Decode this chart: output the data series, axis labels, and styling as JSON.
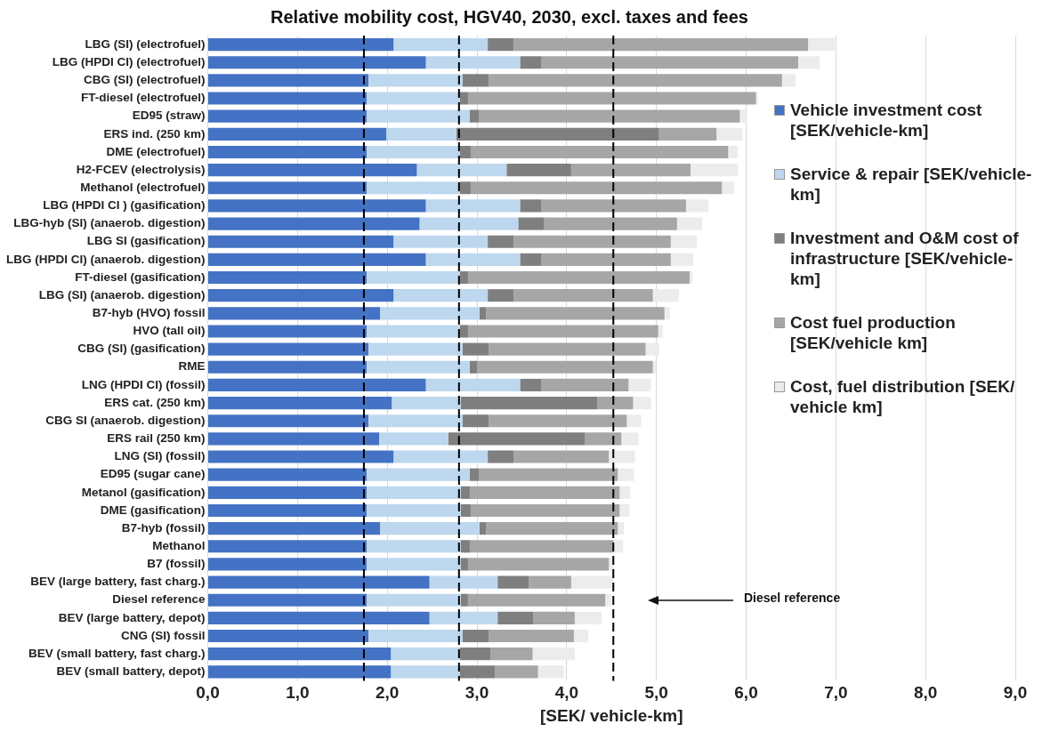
{
  "chart_data": {
    "type": "bar",
    "orientation": "horizontal",
    "stacked": true,
    "title": "Relative mobility cost, HGV40, 2030, excl. taxes and fees",
    "xlabel": "[SEK/ vehicle-km]",
    "categories": [
      "LBG (SI) (electrofuel)",
      "LBG (HPDI CI) (electrofuel)",
      "CBG (SI) (electrofuel)",
      "FT-diesel (electrofuel)",
      "ED95 (straw)",
      "ERS ind. (250 km)",
      "DME (electrofuel)",
      "H2-FCEV (electrolysis)",
      "Methanol (electrofuel)",
      "LBG (HPDI CI ) (gasification)",
      "LBG-hyb (SI) (anaerob. digestion)",
      "LBG SI (gasification)",
      "LBG (HPDI CI) (anaerob. digestion)",
      "FT-diesel (gasification)",
      "LBG (SI) (anaerob. digestion)",
      "B7-hyb (HVO) fossil",
      "HVO (tall oil)",
      "CBG (SI) (gasification)",
      "RME",
      "LNG (HPDI CI) (fossil)",
      "ERS cat. (250 km)",
      "CBG SI (anaerob. digestion)",
      "ERS rail (250 km)",
      "LNG (SI) (fossil)",
      "ED95 (sugar cane)",
      "Metanol (gasification)",
      "DME (gasification)",
      "B7-hyb (fossil)",
      "Methanol",
      "B7 (fossil)",
      "BEV (large battery, fast charg.)",
      "Diesel reference",
      "BEV (large battery, depot)",
      "CNG (SI) fossil",
      "BEV (small battery, fast charg.)",
      "BEV (small battery, depot)"
    ],
    "series": [
      {
        "name": "Vehicle investment cost [SEK/vehicle-km]",
        "color": "#4472c4",
        "values": [
          2.07,
          2.43,
          1.79,
          1.77,
          1.77,
          1.99,
          1.77,
          2.33,
          1.77,
          2.43,
          2.36,
          2.07,
          2.43,
          1.77,
          2.07,
          1.92,
          1.77,
          1.79,
          1.77,
          2.43,
          2.05,
          1.79,
          1.91,
          2.07,
          1.77,
          1.77,
          1.77,
          1.92,
          1.77,
          1.77,
          2.47,
          1.77,
          2.47,
          1.79,
          2.04,
          2.04
        ]
      },
      {
        "name": "Service & repair [SEK/vehicle-km]",
        "color": "#bdd7ee",
        "values": [
          1.05,
          1.05,
          1.05,
          1.04,
          1.15,
          0.78,
          1.04,
          1.0,
          1.04,
          1.05,
          1.1,
          1.05,
          1.05,
          1.04,
          1.05,
          1.11,
          1.04,
          1.05,
          1.15,
          1.05,
          0.77,
          1.05,
          0.77,
          1.05,
          1.15,
          1.05,
          1.05,
          1.11,
          1.05,
          1.05,
          0.76,
          1.05,
          0.76,
          1.05,
          0.77,
          0.77
        ]
      },
      {
        "name": "Investment and O&M cost of infrastructure [SEK/vehicle-km]",
        "color": "#7f7f7f",
        "values": [
          0.29,
          0.24,
          0.29,
          0.09,
          0.1,
          2.26,
          0.12,
          0.72,
          0.12,
          0.24,
          0.29,
          0.29,
          0.24,
          0.09,
          0.29,
          0.07,
          0.09,
          0.29,
          0.08,
          0.24,
          1.52,
          0.29,
          1.52,
          0.29,
          0.1,
          0.1,
          0.11,
          0.07,
          0.1,
          0.08,
          0.35,
          0.08,
          0.4,
          0.29,
          0.34,
          0.39
        ]
      },
      {
        "name": "Cost fuel production [SEK/vehicle km]",
        "color": "#a6a6a6",
        "values": [
          3.28,
          2.86,
          3.27,
          3.21,
          2.91,
          0.64,
          2.87,
          1.33,
          2.8,
          1.61,
          1.48,
          1.75,
          1.44,
          2.47,
          1.55,
          1.99,
          2.12,
          1.75,
          1.96,
          0.97,
          0.4,
          1.54,
          0.41,
          1.06,
          1.55,
          1.67,
          1.66,
          1.47,
          1.6,
          1.57,
          0.47,
          1.53,
          0.46,
          0.95,
          0.47,
          0.48
        ]
      },
      {
        "name": "Cost, fuel distribution [SEK/ vehicle km]",
        "color": "#ececec",
        "values": [
          0.3,
          0.24,
          0.15,
          0.02,
          0.08,
          0.29,
          0.11,
          0.53,
          0.14,
          0.25,
          0.28,
          0.29,
          0.25,
          0.03,
          0.29,
          0.06,
          0.05,
          0.15,
          0.03,
          0.25,
          0.2,
          0.16,
          0.19,
          0.29,
          0.18,
          0.12,
          0.11,
          0.07,
          0.11,
          0.05,
          0.47,
          0.07,
          0.3,
          0.16,
          0.47,
          0.29
        ]
      }
    ],
    "xlim": [
      0,
      9
    ],
    "xticks": [
      {
        "value": 0,
        "label": "0,0"
      },
      {
        "value": 1,
        "label": "1,0"
      },
      {
        "value": 2,
        "label": "2,0"
      },
      {
        "value": 3,
        "label": "3,0"
      },
      {
        "value": 4,
        "label": "4,0"
      },
      {
        "value": 5,
        "label": "5,0"
      },
      {
        "value": 6,
        "label": "6,0"
      },
      {
        "value": 7,
        "label": "7,0"
      },
      {
        "value": 8,
        "label": "8,0"
      },
      {
        "value": 9,
        "label": "9,0"
      }
    ],
    "grid": "x",
    "legend": "right",
    "ref_lines": [
      {
        "axis": "x",
        "value": 1.74,
        "color": "#000000",
        "line_style": "dashed"
      },
      {
        "axis": "x",
        "value": 2.8,
        "color": "#000000",
        "line_style": "dashed"
      },
      {
        "axis": "x",
        "value": 4.52,
        "color": "#000000",
        "line_style": "dashed"
      }
    ],
    "annotations": [
      "Diesel reference"
    ]
  }
}
